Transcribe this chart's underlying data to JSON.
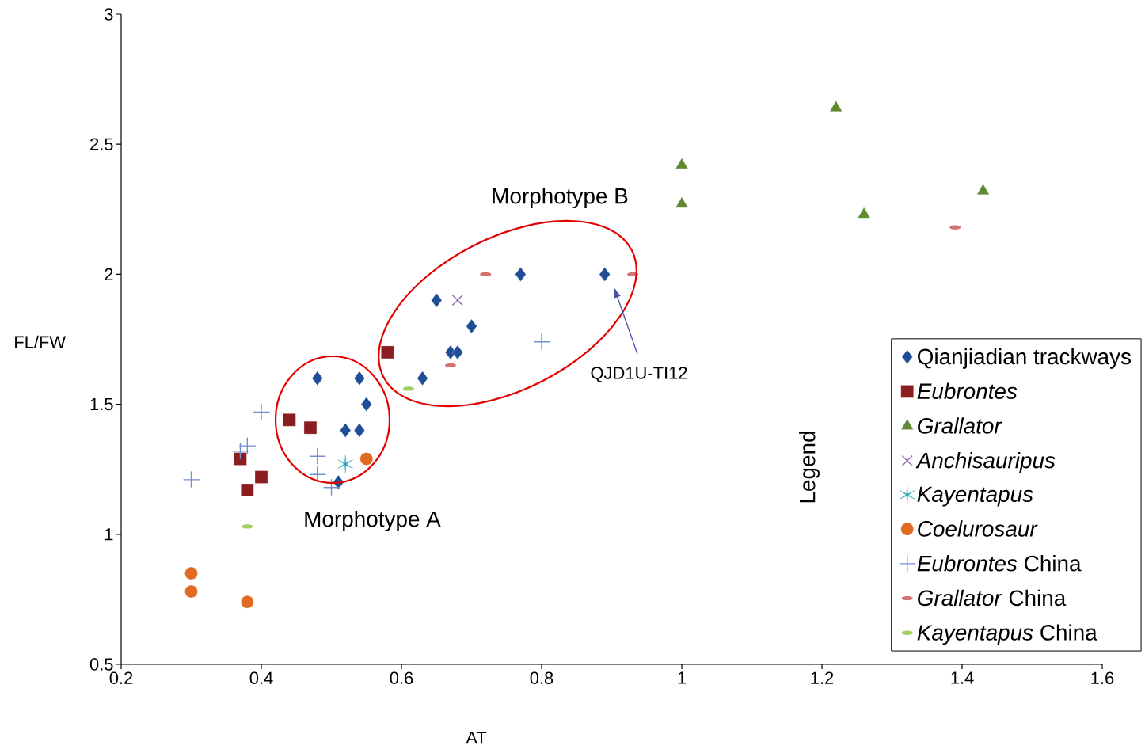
{
  "chart_data": {
    "type": "scatter",
    "xlabel": "AT",
    "ylabel": "FL/FW",
    "legend_title": "Legend",
    "legend": "right",
    "xlim": [
      0.2,
      1.6
    ],
    "ylim": [
      0.5,
      3
    ],
    "xticks": [
      0.2,
      0.4,
      0.6,
      0.8,
      1,
      1.2,
      1.4,
      1.6
    ],
    "yticks": [
      0.5,
      1,
      1.5,
      2,
      2.5,
      3
    ],
    "annotations": [
      "Morphotype A",
      "Morphotype B",
      "QJD1U-TI12"
    ],
    "series": [
      {
        "name": "Qianjiadian trackways",
        "color": "#1f4e96",
        "marker": "diamond",
        "x": [
          0.48,
          0.54,
          0.55,
          0.52,
          0.54,
          0.51,
          0.63,
          0.65,
          0.67,
          0.68,
          0.7,
          0.77,
          0.89
        ],
        "values": [
          1.6,
          1.6,
          1.5,
          1.4,
          1.4,
          1.2,
          1.6,
          1.9,
          1.7,
          1.7,
          1.8,
          2.0,
          2.0
        ]
      },
      {
        "name": "*Eubrontes*",
        "color": "#8b1c1f",
        "marker": "square",
        "x": [
          0.44,
          0.47,
          0.37,
          0.4,
          0.38,
          0.58
        ],
        "values": [
          1.44,
          1.41,
          1.29,
          1.22,
          1.17,
          1.7
        ]
      },
      {
        "name": "*Grallator*",
        "color": "#5f8a30",
        "marker": "triangle",
        "x": [
          1.22,
          1.0,
          1.0,
          1.26,
          1.43
        ],
        "values": [
          2.64,
          2.42,
          2.27,
          2.23,
          2.32
        ]
      },
      {
        "name": "*Anchisauripus*",
        "color": "#8a6aae",
        "marker": "x",
        "x": [
          0.68
        ],
        "values": [
          1.9
        ]
      },
      {
        "name": "*Kayentapus*",
        "color": "#2fa3bd",
        "marker": "cross",
        "x": [
          0.52
        ],
        "values": [
          1.27
        ]
      },
      {
        "name": "*Coelurosaur*",
        "color": "#e06a22",
        "marker": "circle",
        "x": [
          0.55,
          0.3,
          0.3,
          0.38
        ],
        "values": [
          1.29,
          0.85,
          0.78,
          0.74
        ]
      },
      {
        "name": "*Eubrontes* China",
        "color": "#7090d0",
        "marker": "plus",
        "x": [
          0.3,
          0.4,
          0.38,
          0.37,
          0.48,
          0.48,
          0.5,
          0.8
        ],
        "values": [
          1.21,
          1.47,
          1.34,
          1.32,
          1.3,
          1.23,
          1.18,
          1.74
        ]
      },
      {
        "name": "*Grallator* China",
        "color": "#d47272",
        "x": [
          0.72,
          0.93,
          0.67,
          1.39
        ],
        "values": [
          2.0,
          2.0,
          1.65,
          2.18
        ]
      },
      {
        "name": "*Kayentapus* China",
        "color": "#a2d060",
        "x": [
          0.38,
          0.61
        ],
        "values": [
          1.03,
          1.56
        ]
      }
    ]
  }
}
